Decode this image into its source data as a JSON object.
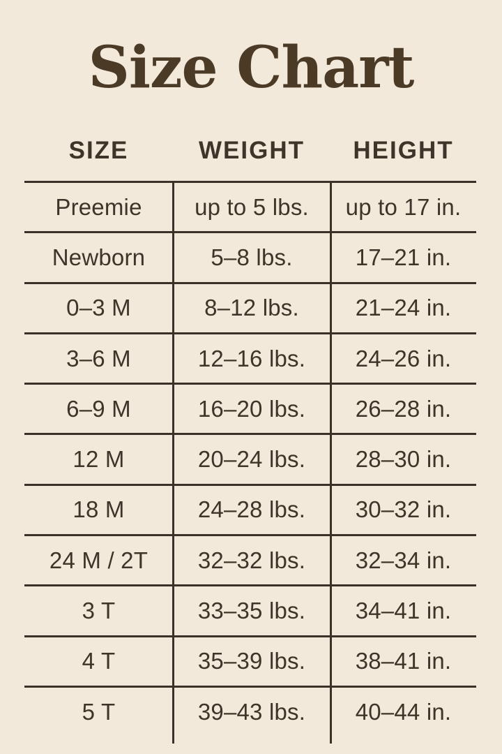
{
  "page": {
    "title": "Size Chart"
  },
  "colors": {
    "background": "#f2e9da",
    "text": "#3e3429",
    "line": "#3a3128",
    "title": "#4b3a26"
  },
  "chart_data": {
    "type": "table",
    "title": "Size Chart",
    "columns": [
      "SIZE",
      "WEIGHT",
      "HEIGHT"
    ],
    "rows": [
      [
        "Preemie",
        "up to 5 lbs.",
        "up to 17 in."
      ],
      [
        "Newborn",
        "5–8 lbs.",
        "17–21 in."
      ],
      [
        "0–3 M",
        "8–12 lbs.",
        "21–24 in."
      ],
      [
        "3–6 M",
        "12–16 lbs.",
        "24–26 in."
      ],
      [
        "6–9 M",
        "16–20 lbs.",
        "26–28 in."
      ],
      [
        "12 M",
        "20–24 lbs.",
        "28–30 in."
      ],
      [
        "18 M",
        "24–28 lbs.",
        "30–32 in."
      ],
      [
        "24 M / 2T",
        "32–32 lbs.",
        "32–34 in."
      ],
      [
        "3 T",
        "33–35 lbs.",
        "34–41 in."
      ],
      [
        "4 T",
        "35–39 lbs.",
        "38–41 in."
      ],
      [
        "5 T",
        "39–43 lbs.",
        "40–44 in."
      ]
    ]
  },
  "table": {
    "headers": [
      "SIZE",
      "WEIGHT",
      "HEIGHT"
    ],
    "rows": [
      {
        "size": "Preemie",
        "weight": "up to 5 lbs.",
        "height": "up to 17 in."
      },
      {
        "size": "Newborn",
        "weight": "5–8 lbs.",
        "height": "17–21 in."
      },
      {
        "size": "0–3 M",
        "weight": "8–12 lbs.",
        "height": "21–24 in."
      },
      {
        "size": "3–6 M",
        "weight": "12–16 lbs.",
        "height": "24–26 in."
      },
      {
        "size": "6–9 M",
        "weight": "16–20 lbs.",
        "height": "26–28 in."
      },
      {
        "size": "12 M",
        "weight": "20–24 lbs.",
        "height": "28–30 in."
      },
      {
        "size": "18 M",
        "weight": "24–28 lbs.",
        "height": "30–32 in."
      },
      {
        "size": "24 M / 2T",
        "weight": "32–32 lbs.",
        "height": "32–34 in."
      },
      {
        "size": "3 T",
        "weight": "33–35 lbs.",
        "height": "34–41 in."
      },
      {
        "size": "4 T",
        "weight": "35–39 lbs.",
        "height": "38–41 in."
      },
      {
        "size": "5 T",
        "weight": "39–43 lbs.",
        "height": "40–44 in."
      }
    ]
  }
}
